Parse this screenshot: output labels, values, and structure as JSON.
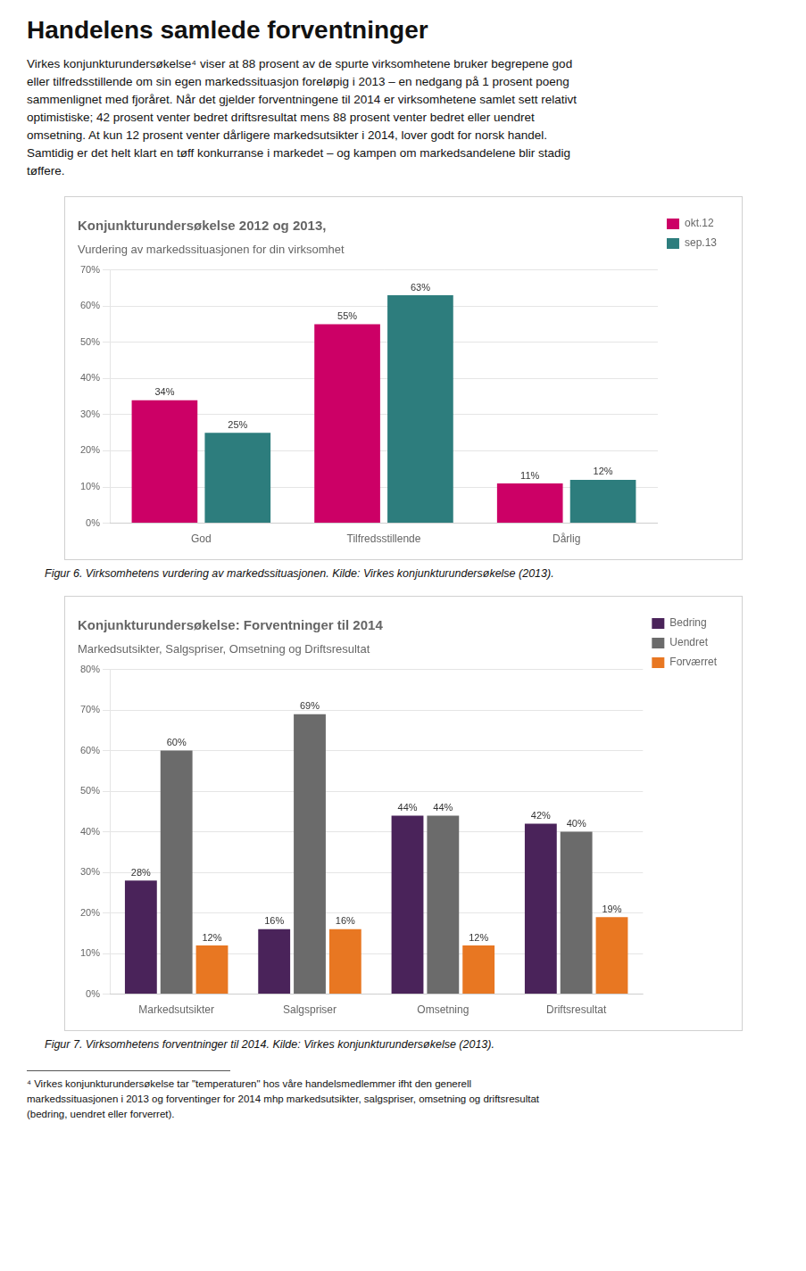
{
  "title": "Handelens samlede forventninger",
  "body_text": [
    "Virkes konjunkturundersøkelse⁴ viser at 88 prosent av de spurte virksomhetene bruker begrepene god",
    "eller tilfredsstillende om sin egen markedssituasjon foreløpig i 2013 – en nedgang på 1 prosent poeng",
    "sammenlignet med fjoråret. Når det gjelder forventningene til 2014 er virksomhetene samlet sett relativt",
    "optimistiske; 42 prosent venter bedret driftsresultat mens 88 prosent venter bedret eller uendret",
    "omsetning. At kun 12 prosent venter dårligere markedsutsikter i 2014, lover godt for norsk handel.",
    "Samtidig er det helt klart en tøff konkurranse i markedet – og kampen om markedsandelene blir stadig",
    "tøffere."
  ],
  "chart_data": [
    {
      "type": "bar",
      "title": "Konjunkturundersøkelse 2012 og 2013,",
      "subtitle": "Vurdering av markedssituasjonen for din virksomhet",
      "categories": [
        "God",
        "Tilfredsstillende",
        "Dårlig"
      ],
      "series": [
        {
          "name": "okt.12",
          "color": "#CC0066",
          "values": [
            34,
            55,
            11
          ],
          "value_labels": [
            "34%",
            "55%",
            "11%"
          ]
        },
        {
          "name": "sep.13",
          "color": "#2D7D7D",
          "values": [
            25,
            63,
            12
          ],
          "value_labels": [
            "25%",
            "63%",
            "12%"
          ]
        }
      ],
      "ylim": [
        0,
        70
      ],
      "yticks": [
        {
          "value": 0,
          "label": "0%"
        },
        {
          "value": 10,
          "label": "10%"
        },
        {
          "value": 20,
          "label": "20%"
        },
        {
          "value": 30,
          "label": "30%"
        },
        {
          "value": 40,
          "label": "40%"
        },
        {
          "value": 50,
          "label": "50%"
        },
        {
          "value": 60,
          "label": "60%"
        },
        {
          "value": 70,
          "label": "70%"
        }
      ],
      "grid": true,
      "legend": "right",
      "data_labels": true,
      "caption": "Figur 6. Virksomhetens vurdering av markedssituasjonen. Kilde: Virkes konjunkturundersøkelse (2013)."
    },
    {
      "type": "bar",
      "title": "Konjunkturundersøkelse: Forventninger til 2014",
      "subtitle": "Markedsutsikter, Salgspriser, Omsetning og Driftsresultat",
      "categories": [
        "Markedsutsikter",
        "Salgspriser",
        "Omsetning",
        "Driftsresultat"
      ],
      "series": [
        {
          "name": "Bedring",
          "color": "#4A235A",
          "values": [
            28,
            16,
            44,
            42
          ],
          "value_labels": [
            "28%",
            "16%",
            "44%",
            "42%"
          ]
        },
        {
          "name": "Uendret",
          "color": "#6B6B6B",
          "values": [
            60,
            69,
            44,
            40
          ],
          "value_labels": [
            "60%",
            "69%",
            "44%",
            "40%"
          ]
        },
        {
          "name": "Forværret",
          "color": "#E87722",
          "values": [
            12,
            16,
            12,
            19
          ],
          "value_labels": [
            "12%",
            "16%",
            "12%",
            "19%"
          ]
        }
      ],
      "ylim": [
        0,
        80
      ],
      "yticks": [
        {
          "value": 0,
          "label": "0%"
        },
        {
          "value": 10,
          "label": "10%"
        },
        {
          "value": 20,
          "label": "20%"
        },
        {
          "value": 30,
          "label": "30%"
        },
        {
          "value": 40,
          "label": "40%"
        },
        {
          "value": 50,
          "label": "50%"
        },
        {
          "value": 60,
          "label": "60%"
        },
        {
          "value": 70,
          "label": "70%"
        },
        {
          "value": 80,
          "label": "80%"
        }
      ],
      "grid": true,
      "legend": "right",
      "data_labels": true,
      "caption": "Figur 7. Virksomhetens forventninger til 2014. Kilde: Virkes konjunkturundersøkelse (2013)."
    }
  ],
  "footnote": [
    "⁴ Virkes konjunkturundersøkelse tar \"temperaturen\" hos våre handelsmedlemmer ifht den generell",
    "markedssituasjonen i 2013 og forventinger for 2014 mhp markedsutsikter, salgspriser, omsetning og driftsresultat",
    "(bedring, uendret eller forverret)."
  ]
}
